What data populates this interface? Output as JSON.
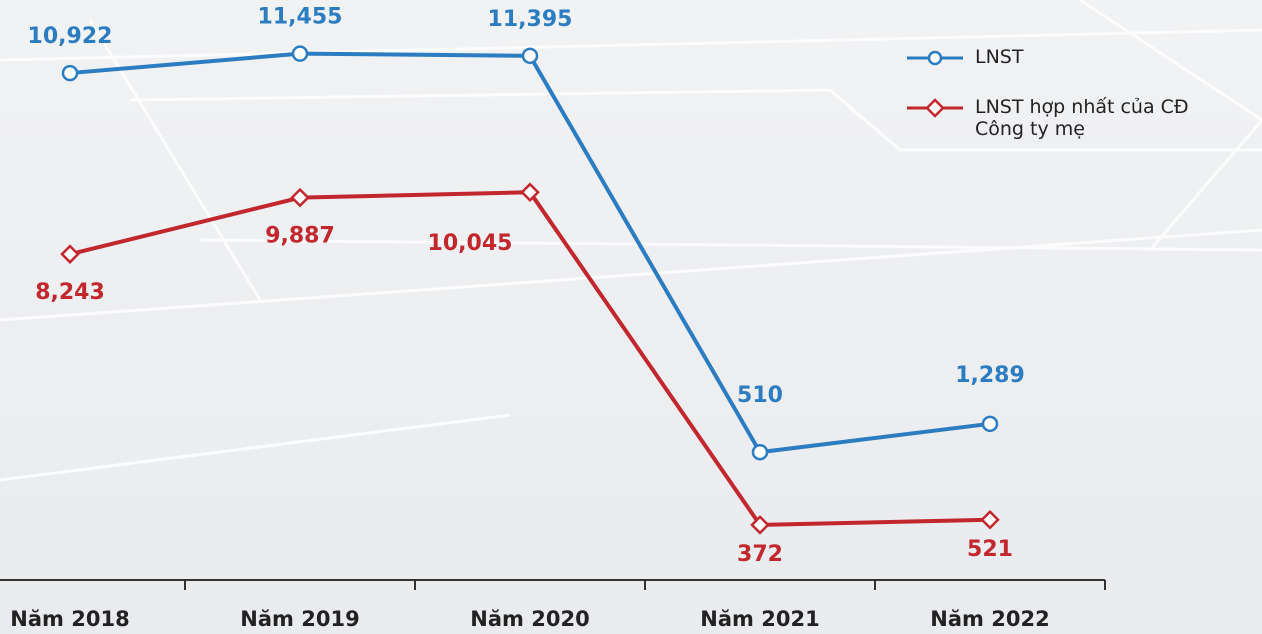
{
  "chart_data": {
    "type": "line",
    "categories": [
      "Năm 2018",
      "Năm 2019",
      "Năm 2020",
      "Năm 2021",
      "Năm 2022"
    ],
    "series": [
      {
        "name": "LNST",
        "color": "#2b7cc0",
        "marker": "circle",
        "values": [
          10922,
          11455,
          11395,
          510,
          1289
        ],
        "value_labels": [
          "10,922",
          "11,455",
          "11,395",
          "510",
          "1,289"
        ]
      },
      {
        "name": "LNST hợp nhất của CĐ Công ty mẹ",
        "color": "#c1272d",
        "marker": "diamond",
        "axis": "y2",
        "values": [
          8243,
          9887,
          10045,
          372,
          521
        ],
        "value_labels": [
          "8,243",
          "9,887",
          "10,045",
          "372",
          "521"
        ]
      }
    ],
    "ylim": [
      -3000,
      11830
    ],
    "y2lim": [
      -1230,
      14470
    ],
    "legend": "upper right"
  }
}
